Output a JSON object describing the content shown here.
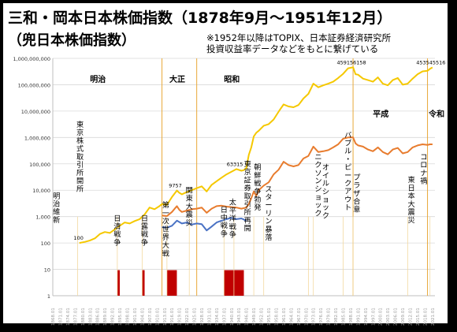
{
  "title": {
    "line1": "三和・岡本日本株価指数（1878年9月〜1951年12月）",
    "line2": "（兜日本株価指数）",
    "note1": "※1952年以降はTOPIX、日本証券経済研究所",
    "note2": "投資収益率データなどをもとに繋げている"
  },
  "colors": {
    "frame": "#000000",
    "price_index": "#f5c800",
    "gold_line": "#f2b632",
    "orange_index": "#e87c2e",
    "blue_index": "#4a72c4",
    "war_bars": "#c00000",
    "era_lines": "#e8a838",
    "grid": "#d9d9d9"
  },
  "chart_data": {
    "type": "line",
    "scale": "log",
    "ylim": [
      1,
      1000000000
    ],
    "xlim": [
      1868,
      2022
    ],
    "y_tick_labels": [
      "1",
      "10",
      "100",
      "1,000",
      "10,000",
      "100,000",
      "1,000,000",
      "10,000,000",
      "100,000,000",
      "1,000,000,000"
    ],
    "x_tick_labels": [
      "1868.01",
      "1871.01",
      "1874.01",
      "1877.01",
      "1880.01",
      "1883.01",
      "1886.01",
      "1889.01",
      "1892.01",
      "1895.01",
      "1898.01",
      "1901.01",
      "1904.01",
      "1907.01",
      "1910.01",
      "1913.01",
      "1916.01",
      "1919.01",
      "1922.01",
      "1925.01",
      "1928.01",
      "1931.01",
      "1934.01",
      "1937.01",
      "1940.01",
      "1943.01",
      "1946.01",
      "1949.01",
      "1952.01",
      "1955.01",
      "1958.01",
      "1961.01",
      "1964.01",
      "1967.01",
      "1970.01",
      "1973.01",
      "1976.01",
      "1979.01",
      "1982.01",
      "1985.01",
      "1988.01",
      "1991.01",
      "1994.01",
      "1997.01",
      "2000.01",
      "2003.01",
      "2006.01",
      "2009.01",
      "2012.01",
      "2015.01",
      "2018.01",
      "2021.01"
    ],
    "eras": [
      {
        "name": "明治",
        "start": 1868
      },
      {
        "name": "大正",
        "start": 1912
      },
      {
        "name": "昭和",
        "start": 1926
      },
      {
        "name": "平成",
        "start": 1989
      },
      {
        "name": "令和",
        "start": 2019
      }
    ],
    "series": [
      {
        "key": "price_index",
        "x": [
          1878.7,
          1881,
          1883,
          1885,
          1887,
          1889,
          1891,
          1893,
          1895,
          1897,
          1899,
          1901,
          1903,
          1905,
          1907,
          1909,
          1911,
          1912,
          1914,
          1916,
          1918,
          1919,
          1920,
          1922,
          1924,
          1926,
          1928,
          1930,
          1932,
          1934,
          1936,
          1938,
          1940,
          1942,
          1944,
          1945,
          1946,
          1947,
          1948,
          1949,
          1950,
          1951,
          1953,
          1955,
          1957,
          1959,
          1961,
          1963,
          1965,
          1967,
          1969,
          1971,
          1973,
          1975,
          1977,
          1979,
          1981,
          1983,
          1985,
          1987,
          1989,
          1990,
          1991,
          1993,
          1995,
          1997,
          1999,
          2001,
          2003,
          2005,
          2007,
          2009,
          2011,
          2013,
          2015,
          2017,
          2019,
          2020,
          2021
        ],
        "values": [
          100,
          110,
          125,
          150,
          220,
          260,
          240,
          330,
          450,
          600,
          550,
          680,
          800,
          1200,
          2200,
          1900,
          2500,
          3000,
          2800,
          5500,
          9757,
          8000,
          7000,
          8500,
          10000,
          12000,
          14000,
          9000,
          16000,
          22000,
          30000,
          40000,
          50000,
          63315,
          55000,
          58000,
          70000,
          220000,
          420000,
          1100000,
          1500000,
          1800000,
          2800000,
          3200000,
          4800000,
          9500000,
          18000000,
          15000000,
          14000000,
          17000000,
          30000000,
          45000000,
          110000000,
          80000000,
          95000000,
          110000000,
          130000000,
          180000000,
          260000000,
          420000000,
          459156158,
          250000000,
          240000000,
          170000000,
          150000000,
          130000000,
          190000000,
          110000000,
          95000000,
          150000000,
          180000000,
          100000000,
          110000000,
          170000000,
          250000000,
          320000000,
          340000000,
          400000000,
          453545516
        ]
      },
      {
        "key": "orange_index",
        "x": [
          1912,
          1914,
          1916,
          1918,
          1919,
          1920,
          1922,
          1924,
          1926,
          1928,
          1930,
          1932,
          1934,
          1936,
          1938,
          1940,
          1942,
          1944,
          1946,
          1947,
          1948,
          1949,
          1950,
          1951,
          1953,
          1955,
          1957,
          1959,
          1961,
          1963,
          1965,
          1967,
          1969,
          1971,
          1973,
          1975,
          1977,
          1979,
          1981,
          1983,
          1985,
          1987,
          1989,
          1990,
          1991,
          1993,
          1995,
          1997,
          1999,
          2001,
          2003,
          2005,
          2007,
          2009,
          2011,
          2013,
          2015,
          2017,
          2019,
          2020,
          2021
        ],
        "values": [
          1100,
          1050,
          1500,
          2500,
          1800,
          1500,
          1700,
          1900,
          2000,
          2200,
          1400,
          2000,
          2500,
          2600,
          2400,
          2300,
          2200,
          2000,
          2200,
          3000,
          5000,
          9000,
          6000,
          10000,
          15000,
          20000,
          40000,
          60000,
          120000,
          90000,
          80000,
          90000,
          160000,
          200000,
          450000,
          280000,
          300000,
          330000,
          420000,
          550000,
          900000,
          1000000,
          1000000,
          600000,
          500000,
          450000,
          350000,
          300000,
          420000,
          280000,
          230000,
          350000,
          400000,
          250000,
          280000,
          420000,
          500000,
          550000,
          520000,
          550000,
          550000
        ]
      },
      {
        "key": "blue_index",
        "x": [
          1912,
          1914,
          1916,
          1918,
          1920,
          1922,
          1924,
          1926,
          1928,
          1930,
          1932,
          1934,
          1936,
          1938,
          1940,
          1942,
          1944,
          1946
        ],
        "values": [
          400,
          380,
          450,
          700,
          550,
          600,
          500,
          550,
          520,
          300,
          420,
          600,
          700,
          800,
          900,
          800,
          850,
          700
        ]
      }
    ],
    "peak_labels": [
      {
        "text": "100",
        "x": 1879,
        "y": 100
      },
      {
        "text": "9757",
        "x": 1918,
        "y": 9757
      },
      {
        "text": "63315",
        "x": 1942,
        "y": 63315
      },
      {
        "text": "459156158",
        "x": 1989,
        "y": 459156158
      },
      {
        "text": "453545516",
        "x": 2021,
        "y": 453545516
      }
    ],
    "war_periods": [
      {
        "start": 1894,
        "end": 1895
      },
      {
        "start": 1904,
        "end": 1905
      },
      {
        "start": 1914,
        "end": 1918
      },
      {
        "start": 1937,
        "end": 1945
      },
      {
        "start": 1941,
        "end": 1945
      }
    ],
    "events": [
      {
        "text": "明治維新",
        "x": 1868
      },
      {
        "text": "東京株式取引所開所",
        "x": 1878
      },
      {
        "text": "日清戦争",
        "x": 1894
      },
      {
        "text": "日露戦争",
        "x": 1904
      },
      {
        "text": "第一次世界大戦",
        "x": 1914
      },
      {
        "text": "関東大震災",
        "x": 1923
      },
      {
        "text": "日中戦争",
        "x": 1937
      },
      {
        "text": "太平洋戦争",
        "x": 1941
      },
      {
        "text": "東京証券取引所再開",
        "x": 1949
      },
      {
        "text": "朝鮮戦争勃発",
        "x": 1950
      },
      {
        "text": "スターリン暴落",
        "x": 1953
      },
      {
        "text": "オイルショック",
        "x": 1973
      },
      {
        "text": "ニクソンショック",
        "x": 1971
      },
      {
        "text": "バブル・ピークアウト",
        "x": 1989
      },
      {
        "text": "プラザ合意",
        "x": 1985
      },
      {
        "text": "東日本大震災",
        "x": 2011
      },
      {
        "text": "コロナ禍",
        "x": 2020
      }
    ]
  }
}
